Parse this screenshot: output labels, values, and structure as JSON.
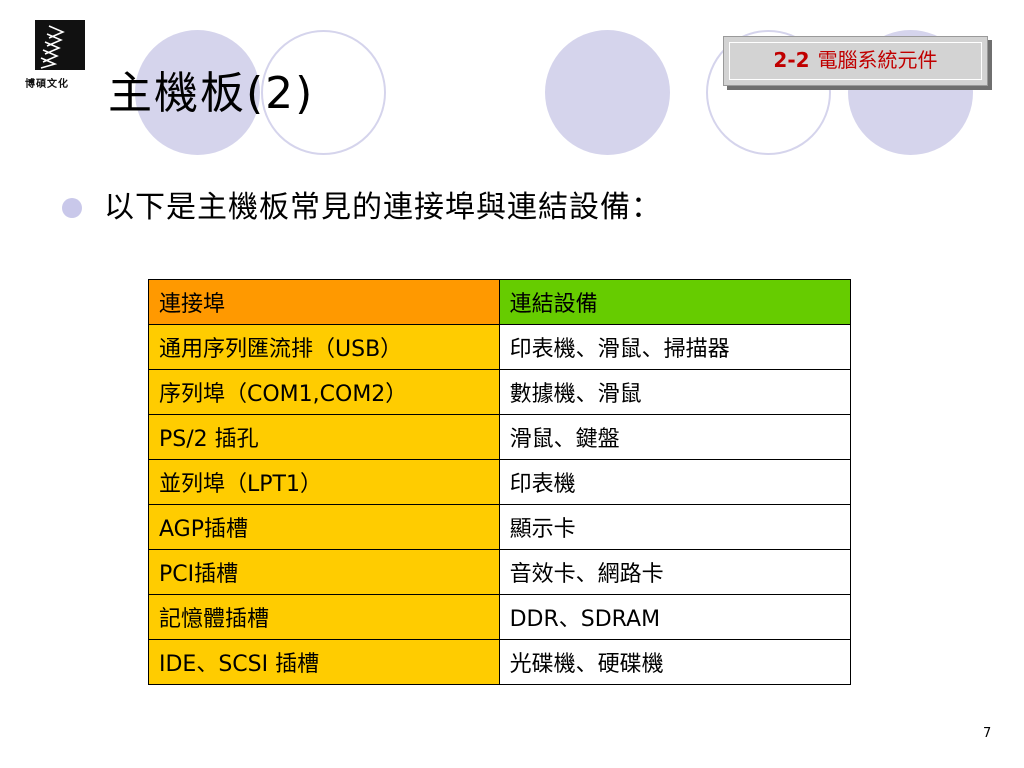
{
  "logo": {
    "text": "博碩文化"
  },
  "title": "主機板(2)",
  "section_badge": {
    "number": "2-2",
    "label": "電腦系統元件"
  },
  "bullet": {
    "text": "以下是主機板常見的連接埠與連結設備："
  },
  "table": {
    "headers": [
      "連接埠",
      "連結設備"
    ],
    "rows": [
      [
        "通用序列匯流排（USB）",
        "印表機、滑鼠、掃描器"
      ],
      [
        "序列埠（COM1,COM2）",
        "數據機、滑鼠"
      ],
      [
        "PS/2 插孔",
        "滑鼠、鍵盤"
      ],
      [
        "並列埠（LPT1）",
        "印表機"
      ],
      [
        "AGP插槽",
        "顯示卡"
      ],
      [
        "PCI插槽",
        "音效卡、網路卡"
      ],
      [
        "記憶體插槽",
        "DDR、SDRAM"
      ],
      [
        "IDE、SCSI 插槽",
        "光碟機、硬碟機"
      ]
    ]
  },
  "page_number": "7",
  "colors": {
    "header_port": "#ff9900",
    "header_device": "#66cc00",
    "port_cells": "#ffcc00",
    "badge_text": "#c00000",
    "circle": "#d5d4ec"
  }
}
